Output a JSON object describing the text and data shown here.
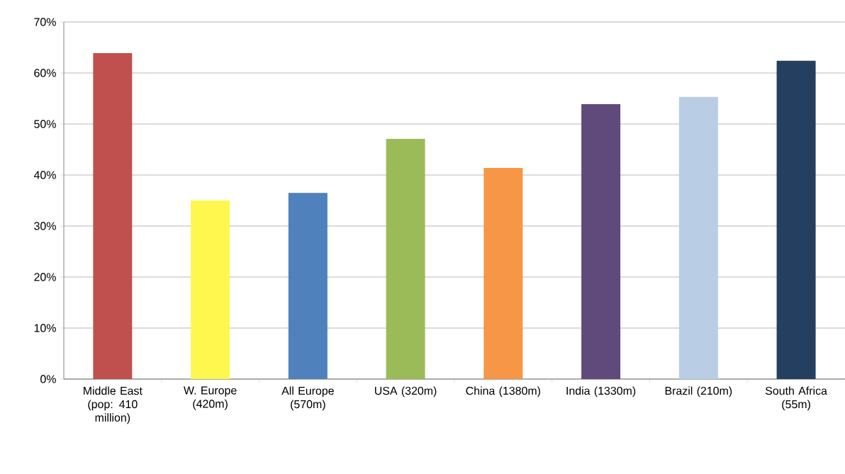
{
  "chart_data": {
    "type": "bar",
    "categories": [
      "Middle East (pop: 410 million)",
      "W. Europe (420m)",
      "All Europe (570m)",
      "USA (320m)",
      "China (1380m)",
      "India (1330m)",
      "Brazil (210m)",
      "South Africa (55m)"
    ],
    "values": [
      63.9,
      35.0,
      36.5,
      47.1,
      41.4,
      53.9,
      55.3,
      62.4
    ],
    "colors": [
      "#c0504d",
      "#fdf74e",
      "#4f81bd",
      "#9bbb59",
      "#f79646",
      "#604a7b",
      "#b9cde5",
      "#243f60"
    ],
    "ylim": [
      0,
      70
    ],
    "yticks": [
      {
        "value": 0,
        "label": "0%"
      },
      {
        "value": 10,
        "label": "10%"
      },
      {
        "value": 20,
        "label": "20%"
      },
      {
        "value": 30,
        "label": "30%"
      },
      {
        "value": 40,
        "label": "40%"
      },
      {
        "value": 50,
        "label": "50%"
      },
      {
        "value": 60,
        "label": "60%"
      },
      {
        "value": 70,
        "label": "70%"
      }
    ],
    "grid": "y"
  }
}
